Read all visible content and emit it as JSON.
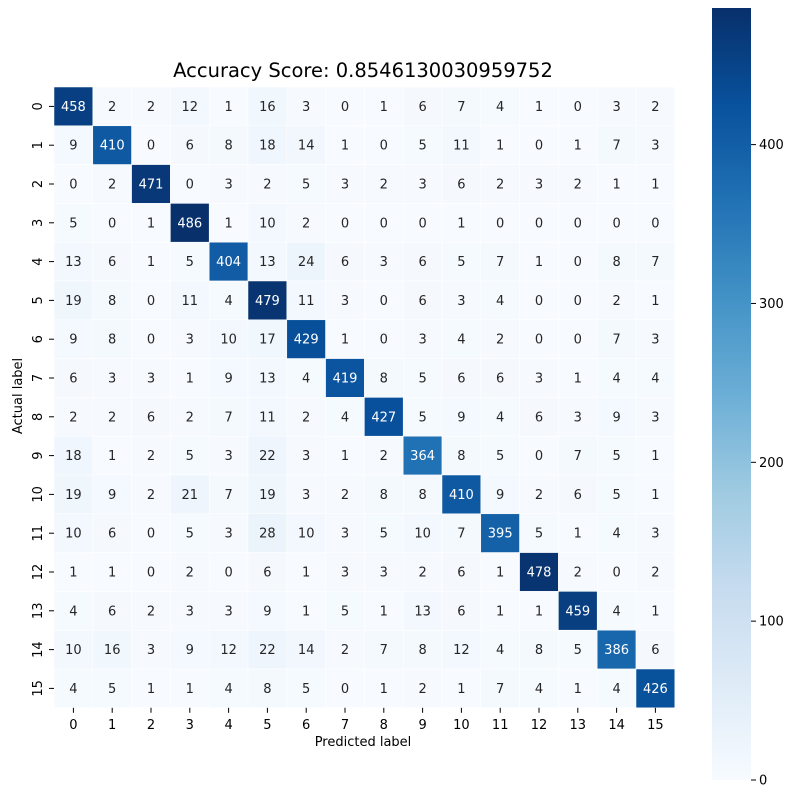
{
  "chart_data": {
    "type": "heatmap",
    "title": "Accuracy Score: 0.8546130030959752",
    "xlabel": "Predicted label",
    "ylabel": "Actual label",
    "x_categories": [
      "0",
      "1",
      "2",
      "3",
      "4",
      "5",
      "6",
      "7",
      "8",
      "9",
      "10",
      "11",
      "12",
      "13",
      "14",
      "15"
    ],
    "y_categories": [
      "0",
      "1",
      "2",
      "3",
      "4",
      "5",
      "6",
      "7",
      "8",
      "9",
      "10",
      "11",
      "12",
      "13",
      "14",
      "15"
    ],
    "values": [
      [
        458,
        2,
        2,
        12,
        1,
        16,
        3,
        0,
        1,
        6,
        7,
        4,
        1,
        0,
        3,
        2
      ],
      [
        9,
        410,
        0,
        6,
        8,
        18,
        14,
        1,
        0,
        5,
        11,
        1,
        0,
        1,
        7,
        3
      ],
      [
        0,
        2,
        471,
        0,
        3,
        2,
        5,
        3,
        2,
        3,
        6,
        2,
        3,
        2,
        1,
        1
      ],
      [
        5,
        0,
        1,
        486,
        1,
        10,
        2,
        0,
        0,
        0,
        1,
        0,
        0,
        0,
        0,
        0
      ],
      [
        13,
        6,
        1,
        5,
        404,
        13,
        24,
        6,
        3,
        6,
        5,
        7,
        1,
        0,
        8,
        7
      ],
      [
        19,
        8,
        0,
        11,
        4,
        479,
        11,
        3,
        0,
        6,
        3,
        4,
        0,
        0,
        2,
        1
      ],
      [
        9,
        8,
        0,
        3,
        10,
        17,
        429,
        1,
        0,
        3,
        4,
        2,
        0,
        0,
        7,
        3
      ],
      [
        6,
        3,
        3,
        1,
        9,
        13,
        4,
        419,
        8,
        5,
        6,
        6,
        3,
        1,
        4,
        4
      ],
      [
        2,
        2,
        6,
        2,
        7,
        11,
        2,
        4,
        427,
        5,
        9,
        4,
        6,
        3,
        9,
        3
      ],
      [
        18,
        1,
        2,
        5,
        3,
        22,
        3,
        1,
        2,
        364,
        8,
        5,
        0,
        7,
        5,
        1
      ],
      [
        19,
        9,
        2,
        21,
        7,
        19,
        3,
        2,
        8,
        8,
        410,
        9,
        2,
        6,
        5,
        1
      ],
      [
        10,
        6,
        0,
        5,
        3,
        28,
        10,
        3,
        5,
        10,
        7,
        395,
        5,
        1,
        4,
        3
      ],
      [
        1,
        1,
        0,
        2,
        0,
        6,
        1,
        3,
        3,
        2,
        6,
        1,
        478,
        2,
        0,
        2
      ],
      [
        4,
        6,
        2,
        3,
        3,
        9,
        1,
        5,
        1,
        13,
        6,
        1,
        1,
        459,
        4,
        1
      ],
      [
        10,
        16,
        3,
        9,
        12,
        22,
        14,
        2,
        7,
        8,
        12,
        4,
        8,
        5,
        386,
        6
      ],
      [
        4,
        5,
        1,
        1,
        4,
        8,
        5,
        0,
        1,
        2,
        1,
        7,
        4,
        1,
        4,
        426
      ]
    ],
    "colormap": "Blues",
    "value_range": [
      0,
      486
    ],
    "colorbar": {
      "ticks": [
        0,
        100,
        200,
        300,
        400
      ],
      "tick_labels": [
        "0",
        "100",
        "200",
        "300",
        "400"
      ]
    },
    "grid": false,
    "legend": "none"
  }
}
